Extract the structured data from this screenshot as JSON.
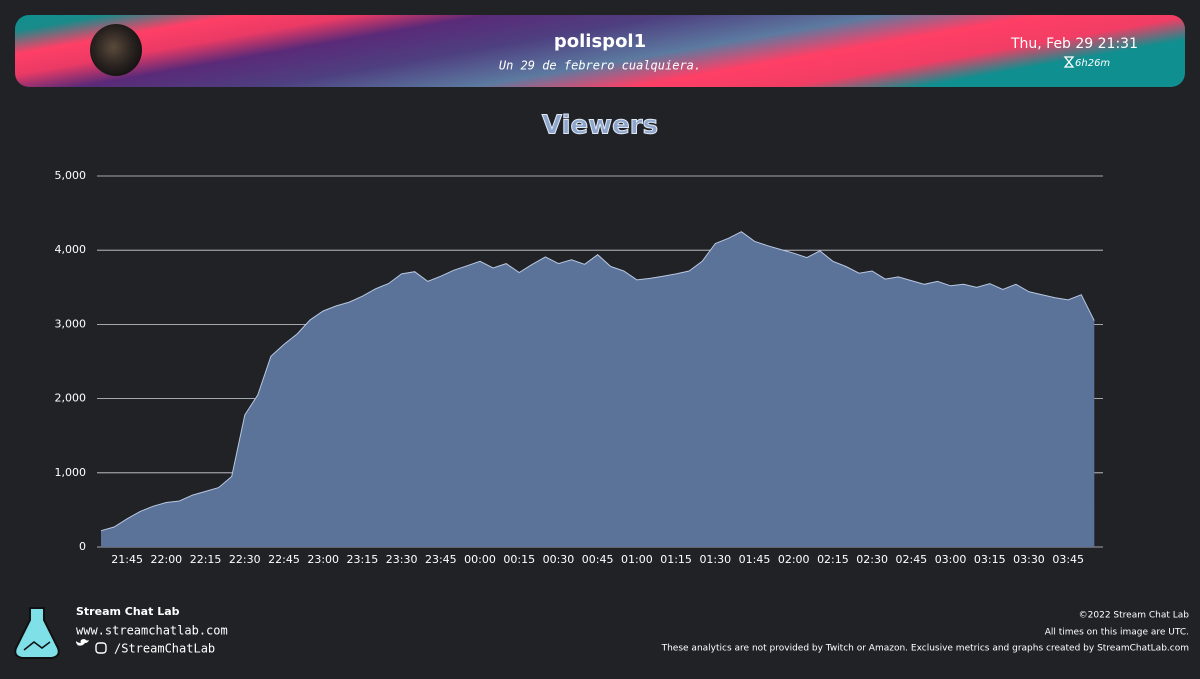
{
  "header": {
    "channel": "polispol1",
    "subtitle": "Un 29 de febrero cualquiera.",
    "date": "Thu, Feb 29 21:31",
    "duration": "6h26m"
  },
  "chart_data": {
    "type": "area",
    "title": "Viewers",
    "categories": [
      null,
      null,
      "21:45",
      null,
      null,
      "22:00",
      null,
      null,
      "22:15",
      null,
      null,
      "22:30",
      null,
      null,
      "22:45",
      null,
      null,
      "23:00",
      null,
      null,
      "23:15",
      null,
      null,
      "23:30",
      null,
      null,
      "23:45",
      null,
      null,
      "00:00",
      null,
      null,
      "00:15",
      null,
      null,
      "00:30",
      null,
      null,
      "00:45",
      null,
      null,
      "01:00",
      null,
      null,
      "01:15",
      null,
      null,
      "01:30",
      null,
      null,
      "01:45",
      null,
      null,
      "02:00",
      null,
      null,
      "02:15",
      null,
      null,
      "02:30",
      null,
      null,
      "02:45",
      null,
      null,
      "03:00",
      null,
      null,
      "03:15",
      null,
      null,
      "03:30",
      null,
      null,
      "03:45",
      null,
      null
    ],
    "values": [
      220,
      270,
      380,
      480,
      550,
      600,
      620,
      700,
      750,
      800,
      950,
      1780,
      2050,
      2570,
      2730,
      2870,
      3060,
      3180,
      3250,
      3300,
      3380,
      3480,
      3550,
      3680,
      3710,
      3580,
      3650,
      3730,
      3790,
      3850,
      3760,
      3820,
      3700,
      3810,
      3910,
      3820,
      3870,
      3810,
      3940,
      3780,
      3720,
      3600,
      3620,
      3650,
      3680,
      3720,
      3850,
      4090,
      4160,
      4250,
      4120,
      4060,
      4010,
      3960,
      3900,
      3990,
      3850,
      3780,
      3690,
      3720,
      3610,
      3640,
      3590,
      3540,
      3580,
      3520,
      3540,
      3500,
      3550,
      3470,
      3540,
      3440,
      3400,
      3360,
      3330,
      3400,
      3050
    ],
    "color": "#5b7399",
    "ylim": [
      0,
      5000
    ],
    "yticks": [
      0,
      {
        "value": 1000,
        "label": "1,000"
      },
      {
        "value": 2000,
        "label": "2,000"
      },
      {
        "value": 3000,
        "label": "3,000"
      },
      {
        "value": 4000,
        "label": "4,000"
      },
      {
        "value": 5000,
        "label": "5,000"
      }
    ],
    "grid": true
  },
  "footer": {
    "brand": "Stream Chat Lab",
    "website": "www.streamchatlab.com",
    "social": "/StreamChatLab",
    "copyright": "©2022 Stream Chat Lab",
    "utc_note": "All times on this image are UTC.",
    "disclaimer": "These analytics are not provided by Twitch or Amazon. Exclusive metrics and graphs created by StreamChatLab.com"
  }
}
